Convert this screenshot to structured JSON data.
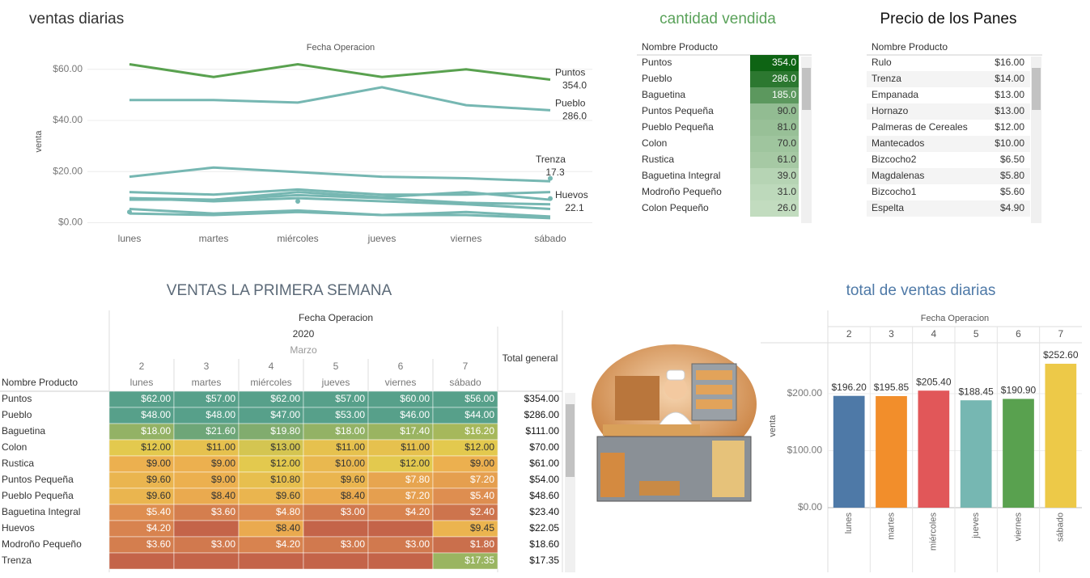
{
  "chart_data": [
    {
      "type": "line",
      "title": "ventas diarias",
      "x_title": "Fecha Operacion",
      "y_title": "venta",
      "categories": [
        "lunes",
        "martes",
        "miércoles",
        "jueves",
        "viernes",
        "sábado"
      ],
      "ylim": [
        -3,
        65
      ],
      "yticks": [
        {
          "value": 0,
          "label": "$0.00"
        },
        {
          "value": 20,
          "label": "$20.00"
        },
        {
          "value": 40,
          "label": "$40.00"
        },
        {
          "value": 60,
          "label": "$60.00"
        }
      ],
      "grid": true,
      "series": [
        {
          "name": "Puntos",
          "end_label": "354.0",
          "color": "#59a14f",
          "values": [
            62,
            57,
            62,
            57,
            60,
            56
          ]
        },
        {
          "name": "Pueblo",
          "end_label": "286.0",
          "color": "#76b7b2",
          "values": [
            48,
            48,
            47,
            53,
            46,
            44
          ]
        },
        {
          "name": "Trenza",
          "end_label": "17.3",
          "color": "#76b7b2",
          "values": [
            null,
            null,
            null,
            null,
            null,
            17.35
          ]
        },
        {
          "name": "Huevos",
          "end_label": "22.1",
          "color": "#76b7b2",
          "values": [
            4.2,
            null,
            8.4,
            null,
            null,
            9.45
          ]
        },
        {
          "color": "#76b7b2",
          "values": [
            18,
            21.6,
            19.8,
            18,
            17.4,
            16.2
          ]
        },
        {
          "color": "#76b7b2",
          "values": [
            12,
            11,
            13,
            11,
            11,
            12
          ]
        },
        {
          "color": "#76b7b2",
          "values": [
            9,
            9,
            12,
            10,
            12,
            9
          ]
        },
        {
          "color": "#76b7b2",
          "values": [
            9.6,
            9,
            10.8,
            9.6,
            7.8,
            7.2
          ]
        },
        {
          "color": "#76b7b2",
          "values": [
            9.6,
            8.4,
            9.6,
            8.4,
            7.2,
            5.4
          ]
        },
        {
          "color": "#76b7b2",
          "values": [
            5.4,
            3.6,
            4.8,
            3,
            4.2,
            2.4
          ]
        },
        {
          "color": "#76b7b2",
          "values": [
            3.6,
            3,
            4.2,
            3,
            3,
            1.8
          ]
        }
      ]
    },
    {
      "type": "bar",
      "title": "total de ventas diarias",
      "x_title": "Fecha Operacion",
      "y_title": "venta",
      "day_numbers": [
        2,
        3,
        4,
        5,
        6,
        7
      ],
      "categories": [
        "lunes",
        "martes",
        "miércoles",
        "jueves",
        "viernes",
        "sábado"
      ],
      "values": [
        196.2,
        195.85,
        205.4,
        188.45,
        190.9,
        252.6
      ],
      "value_labels": [
        "$196.20",
        "$195.85",
        "$205.40",
        "$188.45",
        "$190.90",
        "$252.60"
      ],
      "colors": [
        "#4e79a7",
        "#f28e2b",
        "#e15759",
        "#76b7b2",
        "#59a14f",
        "#edc948"
      ],
      "ylim": [
        0,
        288
      ],
      "yticks": [
        {
          "value": 0,
          "label": "$0.00"
        },
        {
          "value": 100,
          "label": "$100.00"
        },
        {
          "value": 200,
          "label": "$200.00"
        }
      ],
      "grid": true
    }
  ],
  "quantity_table": {
    "title": "cantidad vendida",
    "header": "Nombre Producto",
    "rows": [
      {
        "name": "Puntos",
        "value": 354,
        "label": "354.0"
      },
      {
        "name": "Pueblo",
        "value": 286,
        "label": "286.0"
      },
      {
        "name": "Baguetina",
        "value": 185,
        "label": "185.0"
      },
      {
        "name": "Puntos Pequeña",
        "value": 90,
        "label": "90.0"
      },
      {
        "name": "Pueblo Pequeña",
        "value": 81,
        "label": "81.0"
      },
      {
        "name": "Colon",
        "value": 70,
        "label": "70.0"
      },
      {
        "name": "Rustica",
        "value": 61,
        "label": "61.0"
      },
      {
        "name": "Baguetina Integral",
        "value": 39,
        "label": "39.0"
      },
      {
        "name": "Modroño Pequeño",
        "value": 31,
        "label": "31.0"
      },
      {
        "name": "Colon Pequeño",
        "value": 26,
        "label": "26.0"
      }
    ]
  },
  "price_table": {
    "title": "Precio de los Panes",
    "header": "Nombre Producto",
    "rows": [
      {
        "name": "Rulo",
        "price": "$16.00"
      },
      {
        "name": "Trenza",
        "price": "$14.00"
      },
      {
        "name": "Empanada",
        "price": "$13.00"
      },
      {
        "name": "Hornazo",
        "price": "$13.00"
      },
      {
        "name": "Palmeras de Cereales",
        "price": "$12.00"
      },
      {
        "name": "Mantecados",
        "price": "$10.00"
      },
      {
        "name": "Bizcocho2",
        "price": "$6.50"
      },
      {
        "name": "Magdalenas",
        "price": "$5.80"
      },
      {
        "name": "Bizcocho1",
        "price": "$5.60"
      },
      {
        "name": "Espelta",
        "price": "$4.90"
      }
    ]
  },
  "week_table": {
    "title": "VENTAS LA PRIMERA SEMANA",
    "header": "Fecha Operacion",
    "year": 2020,
    "month": "Marzo",
    "row_header": "Nombre Producto",
    "total_header": "Total general",
    "days": [
      2,
      3,
      4,
      5,
      6,
      7
    ],
    "weekdays": [
      "lunes",
      "martes",
      "miércoles",
      "jueves",
      "viernes",
      "sábado"
    ],
    "rows": [
      {
        "name": "Puntos",
        "values": [
          62,
          57,
          62,
          57,
          60,
          56
        ],
        "labels": [
          "$62.00",
          "$57.00",
          "$62.00",
          "$57.00",
          "$60.00",
          "$56.00"
        ],
        "total": "$354.00"
      },
      {
        "name": "Pueblo",
        "values": [
          48,
          48,
          47,
          53,
          46,
          44
        ],
        "labels": [
          "$48.00",
          "$48.00",
          "$47.00",
          "$53.00",
          "$46.00",
          "$44.00"
        ],
        "total": "$286.00"
      },
      {
        "name": "Baguetina",
        "values": [
          18,
          21.6,
          19.8,
          18,
          17.4,
          16.2
        ],
        "labels": [
          "$18.00",
          "$21.60",
          "$19.80",
          "$18.00",
          "$17.40",
          "$16.20"
        ],
        "total": "$111.00"
      },
      {
        "name": "Colon",
        "values": [
          12,
          11,
          13,
          11,
          11,
          12
        ],
        "labels": [
          "$12.00",
          "$11.00",
          "$13.00",
          "$11.00",
          "$11.00",
          "$12.00"
        ],
        "total": "$70.00"
      },
      {
        "name": "Rustica",
        "values": [
          9,
          9,
          12,
          10,
          12,
          9
        ],
        "labels": [
          "$9.00",
          "$9.00",
          "$12.00",
          "$10.00",
          "$12.00",
          "$9.00"
        ],
        "total": "$61.00"
      },
      {
        "name": "Puntos Pequeña",
        "values": [
          9.6,
          9,
          10.8,
          9.6,
          7.8,
          7.2
        ],
        "labels": [
          "$9.60",
          "$9.00",
          "$10.80",
          "$9.60",
          "$7.80",
          "$7.20"
        ],
        "total": "$54.00"
      },
      {
        "name": "Pueblo Pequeña",
        "values": [
          9.6,
          8.4,
          9.6,
          8.4,
          7.2,
          5.4
        ],
        "labels": [
          "$9.60",
          "$8.40",
          "$9.60",
          "$8.40",
          "$7.20",
          "$5.40"
        ],
        "total": "$48.60"
      },
      {
        "name": "Baguetina Integral",
        "values": [
          5.4,
          3.6,
          4.8,
          3,
          4.2,
          2.4
        ],
        "labels": [
          "$5.40",
          "$3.60",
          "$4.80",
          "$3.00",
          "$4.20",
          "$2.40"
        ],
        "total": "$23.40"
      },
      {
        "name": "Huevos",
        "values": [
          4.2,
          null,
          8.4,
          null,
          null,
          9.45
        ],
        "labels": [
          "$4.20",
          null,
          "$8.40",
          null,
          null,
          "$9.45"
        ],
        "total": "$22.05"
      },
      {
        "name": "Modroño Pequeño",
        "values": [
          3.6,
          3,
          4.2,
          3,
          3,
          1.8
        ],
        "labels": [
          "$3.60",
          "$3.00",
          "$4.20",
          "$3.00",
          "$3.00",
          "$1.80"
        ],
        "total": "$18.60"
      },
      {
        "name": "Trenza",
        "values": [
          null,
          null,
          null,
          null,
          null,
          17.35
        ],
        "labels": [
          null,
          null,
          null,
          null,
          null,
          "$17.35"
        ],
        "total": "$17.35"
      }
    ]
  }
}
